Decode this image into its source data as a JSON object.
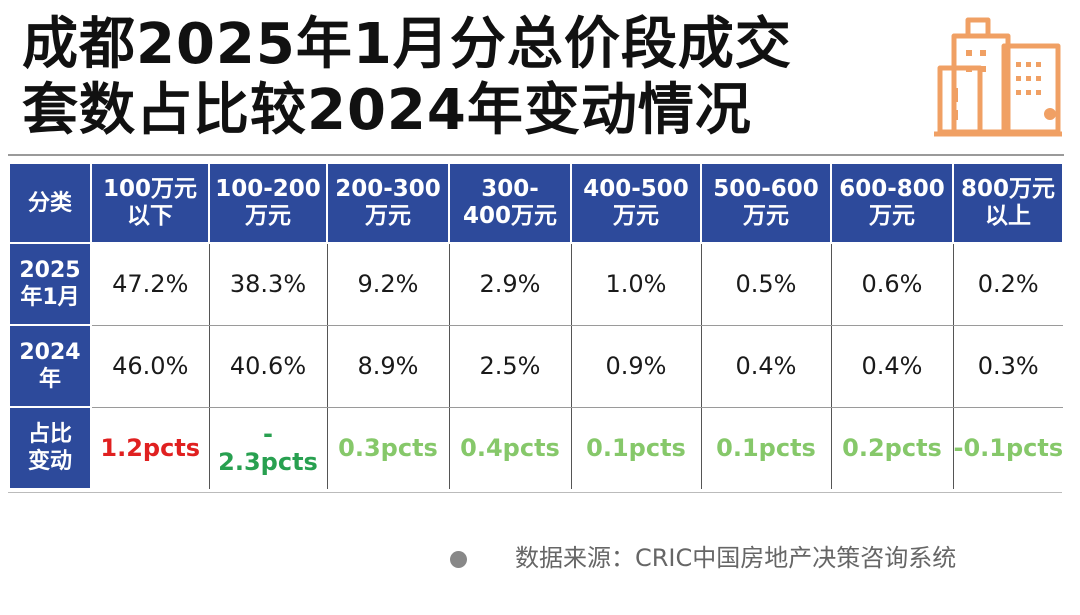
{
  "title": {
    "line1": "成都2025年1月分总价段成交",
    "line2": "套数占比较2024年变动情况"
  },
  "source": "数据来源：CRIC中国房地产决策咨询系统",
  "logo": {
    "icon": "city-buildings-icon",
    "color": "#f0a064"
  },
  "colors": {
    "header_bg": "#2d4a9b",
    "positive_change": "#e02020",
    "negative_change_strong": "#28a050",
    "change_light": "#86c86a"
  },
  "chart_data": {
    "type": "table",
    "header_label": "分类",
    "categories": [
      "100万元以下",
      "100-200万元",
      "200-300万元",
      "300-400万元",
      "400-500万元",
      "500-600万元",
      "600-800万元",
      "800万元以上"
    ],
    "series": [
      {
        "name": "2025年1月",
        "values": [
          "47.2%",
          "38.3%",
          "9.2%",
          "2.9%",
          "1.0%",
          "0.5%",
          "0.6%",
          "0.2%"
        ]
      },
      {
        "name": "2024年",
        "values": [
          "46.0%",
          "40.6%",
          "8.9%",
          "2.5%",
          "0.9%",
          "0.4%",
          "0.4%",
          "0.3%"
        ]
      }
    ],
    "change": {
      "name": "占比变动",
      "values": [
        "1.2pcts",
        "-2.3pcts",
        "0.3pcts",
        "0.4pcts",
        "0.1pcts",
        "0.1pcts",
        "0.2pcts",
        "-0.1pcts"
      ]
    }
  }
}
